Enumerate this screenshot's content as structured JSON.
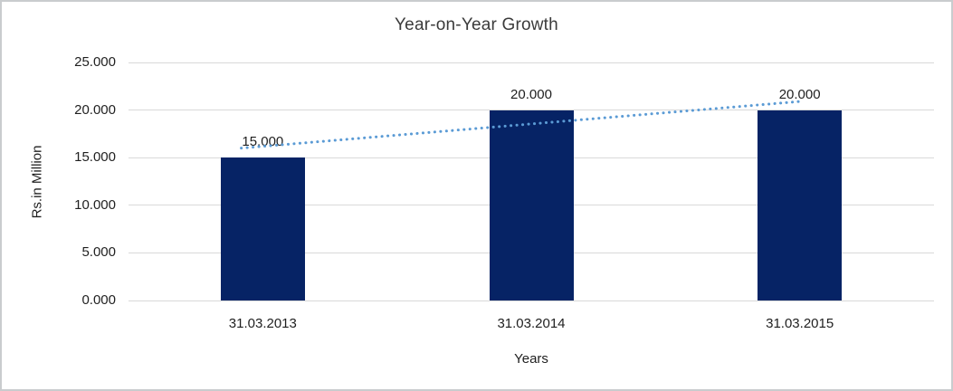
{
  "frame": {
    "border_color": "#c9ccce",
    "background_color": "#ffffff"
  },
  "chart_data": {
    "type": "bar",
    "title": "Year-on-Year Growth",
    "categories": [
      "31.03.2013",
      "31.03.2014",
      "31.03.2015"
    ],
    "values": [
      15,
      20,
      20
    ],
    "data_labels": [
      "15.000",
      "20.000",
      "20.000"
    ],
    "xlabel": "Years",
    "ylabel": "Rs.in Million",
    "ylim": [
      0,
      25
    ],
    "ytick_step": 5,
    "ytick_labels": [
      "0.000",
      "5.000",
      "10.000",
      "15.000",
      "20.000",
      "25.000"
    ],
    "grid": true,
    "legend": "none",
    "colors": {
      "bar": "#062365",
      "gridline": "#d9d9d9",
      "title_text": "#3b3b3b",
      "tick_text": "#1f1f1f",
      "trendline": "#5b9bd5"
    },
    "trendline": {
      "type": "linear",
      "style": "dotted",
      "color": "#5b9bd5",
      "points_category_units": [
        {
          "x": 0.92,
          "y": 16.0
        },
        {
          "x": 3.0,
          "y": 20.9
        }
      ]
    }
  }
}
